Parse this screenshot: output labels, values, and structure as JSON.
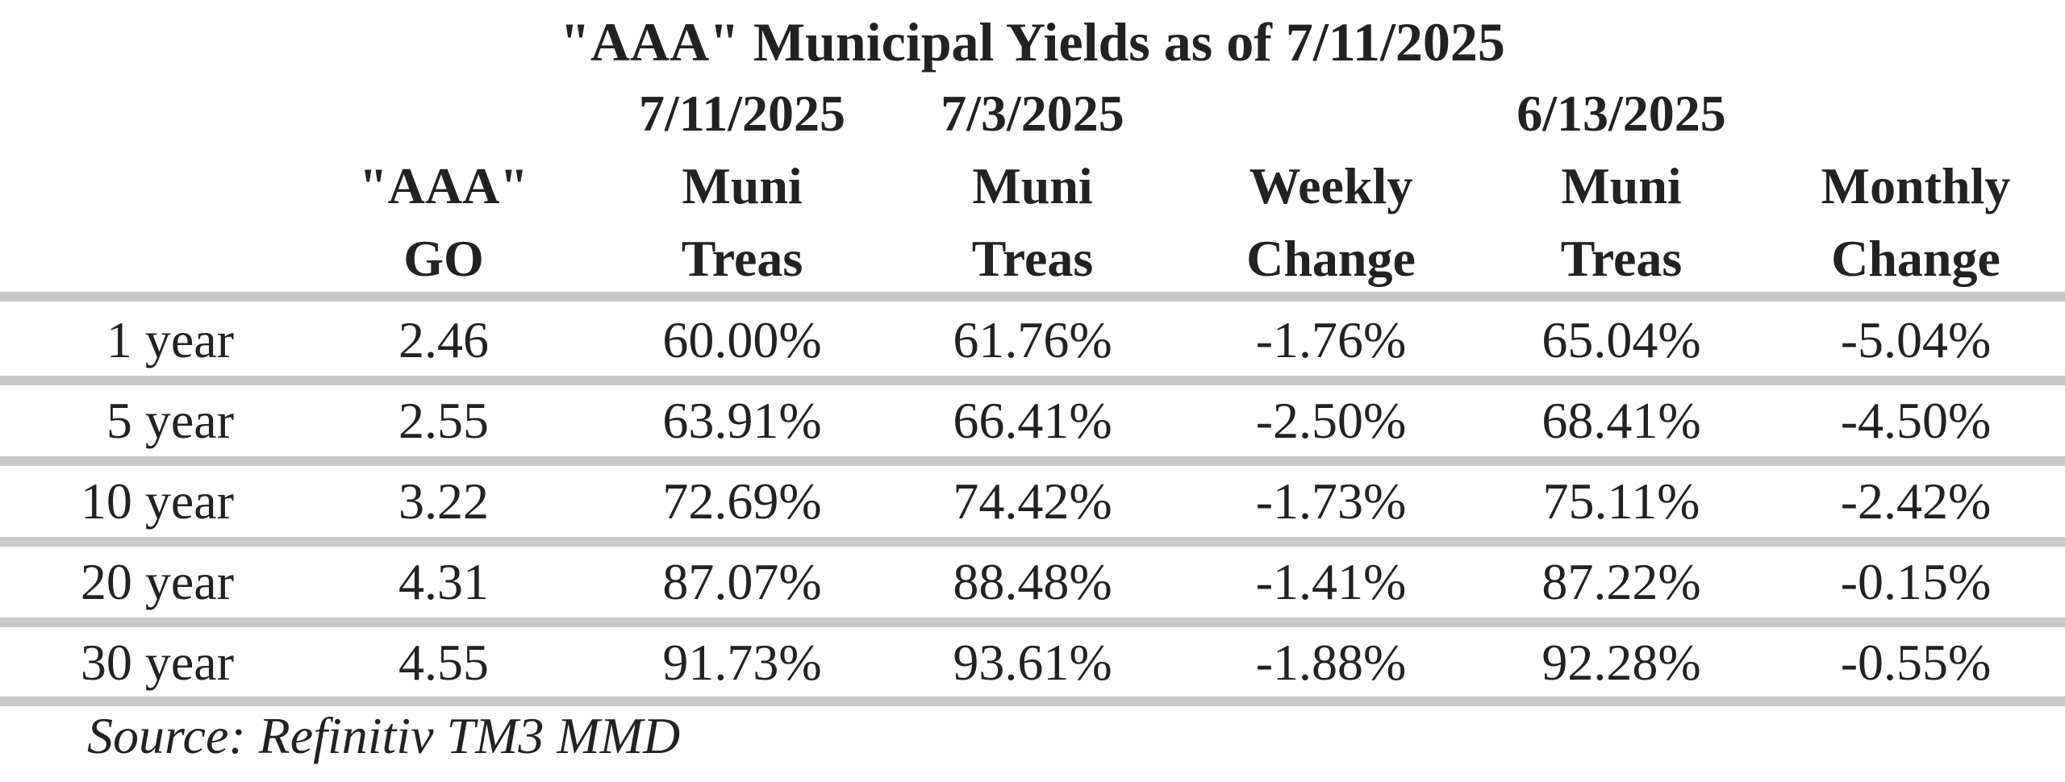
{
  "title": "\"AAA\" Municipal Yields as of 7/11/2025",
  "headers": {
    "go": {
      "line1": "\"AAA\"",
      "line2": "GO"
    },
    "muni_0711": {
      "date": "7/11/2025",
      "line1": "Muni",
      "line2": "Treas"
    },
    "muni_0703": {
      "date": "7/3/2025",
      "line1": "Muni",
      "line2": "Treas"
    },
    "weekly": {
      "line1": "Weekly",
      "line2": "Change"
    },
    "muni_0613": {
      "date": "6/13/2025",
      "line1": "Muni",
      "line2": "Treas"
    },
    "monthly": {
      "line1": "Monthly",
      "line2": "Change"
    }
  },
  "rows": [
    {
      "label": "1 year",
      "go": "2.46",
      "muni_0711": "60.00%",
      "muni_0703": "61.76%",
      "weekly": "-1.76%",
      "muni_0613": "65.04%",
      "monthly": "-5.04%"
    },
    {
      "label": "5 year",
      "go": "2.55",
      "muni_0711": "63.91%",
      "muni_0703": "66.41%",
      "weekly": "-2.50%",
      "muni_0613": "68.41%",
      "monthly": "-4.50%"
    },
    {
      "label": "10 year",
      "go": "3.22",
      "muni_0711": "72.69%",
      "muni_0703": "74.42%",
      "weekly": "-1.73%",
      "muni_0613": "75.11%",
      "monthly": "-2.42%"
    },
    {
      "label": "20 year",
      "go": "4.31",
      "muni_0711": "87.07%",
      "muni_0703": "88.48%",
      "weekly": "-1.41%",
      "muni_0613": "87.22%",
      "monthly": "-0.15%"
    },
    {
      "label": "30 year",
      "go": "4.55",
      "muni_0711": "91.73%",
      "muni_0703": "93.61%",
      "weekly": "-1.88%",
      "muni_0613": "92.28%",
      "monthly": "-0.55%"
    }
  ],
  "source": "Source: Refinitiv TM3 MMD",
  "colors": {
    "rule": "#c8c8c8",
    "text": "#222222",
    "background": "#ffffff"
  }
}
